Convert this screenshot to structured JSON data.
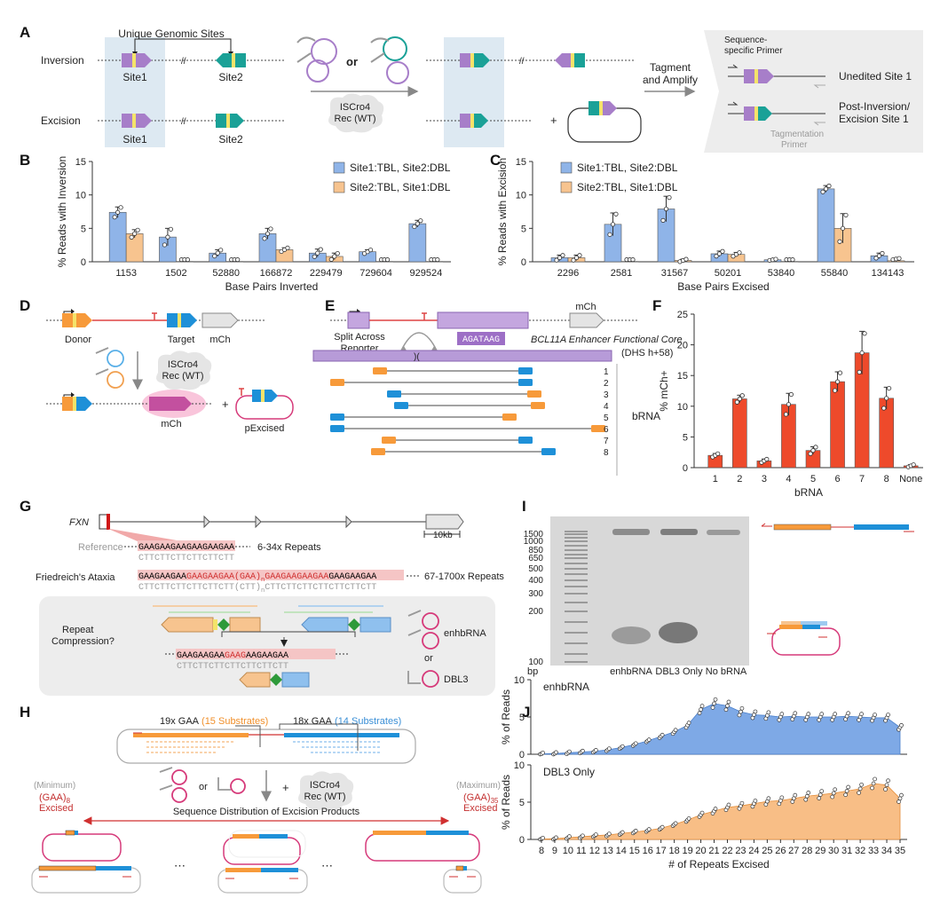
{
  "colors": {
    "blue": "#8fb4e8",
    "orange": "#f7c48f",
    "red": "#ee4a2b",
    "purple": "#a77ec9",
    "teal": "#1aa197",
    "pink": "#d63a7a",
    "gray_panel": "#ededed"
  },
  "panelA": {
    "letter": "A",
    "inversion": "Inversion",
    "excision": "Excision",
    "unique_sites": "Unique Genomic Sites",
    "site1": "Site1",
    "site2": "Site2",
    "or": "or",
    "enzyme": "ISCro4",
    "enzyme2": "Rec (WT)",
    "tagment": "Tagment",
    "amplify": "and Amplify",
    "seq_primer_1": "Sequence-",
    "seq_primer_2": "specific Primer",
    "unedited": "Unedited Site 1",
    "post_inv_1": "Post-Inversion/",
    "post_inv_2": "Excision Site 1",
    "tag_primer_1": "Tagmentation",
    "tag_primer_2": "Primer",
    "plus": "+"
  },
  "panelB": {
    "letter": "B",
    "ylabel": "% Reads with Inversion",
    "xlabel": "Base Pairs Inverted",
    "legend": [
      "Site1:TBL, Site2:DBL",
      "Site2:TBL, Site1:DBL"
    ]
  },
  "panelC": {
    "letter": "C",
    "ylabel": "% Reads with Excision",
    "xlabel": "Base Pairs Excised",
    "legend": [
      "Site1:TBL, Site2:DBL",
      "Site2:TBL, Site1:DBL"
    ]
  },
  "panelD": {
    "letter": "D",
    "donor": "Donor",
    "target": "Target",
    "mch": "mCh",
    "enzyme": "ISCro4",
    "enzyme2": "Rec (WT)",
    "plus": "+",
    "mch2": "mCh",
    "pexcised": "pExcised"
  },
  "panelE": {
    "letter": "E",
    "mch": "mCh",
    "split": "Split Across",
    "reporter": "Reporter",
    "motif": "AGATAAG",
    "core": "BCL11A Enhancer Functional Core",
    "dhs": "(DHS h+58)",
    "brna": "bRNA",
    "rows": [
      "1",
      "2",
      "3",
      "4",
      "5",
      "6",
      "7",
      "8"
    ]
  },
  "panelF": {
    "letter": "F",
    "ylabel": "% mCh+",
    "xlabel": "bRNA"
  },
  "panelG": {
    "letter": "G",
    "gene": "FXN",
    "scale": "10kb",
    "reference": "Reference",
    "ref_seq": "GAAGAAGAAGAAGAAGAA",
    "ref_comp": "CTTCTTCTTCTTCTTCTT",
    "ref_repeats": "6-34x Repeats",
    "fa": "Friedreich's Ataxia",
    "fa_seq_a": "GAAGAAGAA",
    "fa_seq_b": "GAAGAAGAA(GAA)",
    "fa_sub": "n",
    "fa_seq_c": "GAAGAAGAAGAA",
    "fa_seq_d": "GAAGAAGAA",
    "fa_comp": "CTTCTTCTTCTTCTTCTT(CTT)",
    "fa_comp2": "CTTCTTCTTCTTCTTCTTCTT",
    "fa_repeats": "67-1700x Repeats",
    "question_1": "Repeat",
    "question_2": "Compression?",
    "enh": "enhbRNA",
    "or": "or",
    "dbl3": "DBL3",
    "cmp_a": "GAAGAAGAA",
    "cmp_b": "GAAG",
    "cmp_c": "AAGAAGAA",
    "cmp_comp": "CTTCTTCTTCTTCTTCTTCTT"
  },
  "panelH": {
    "letter": "H",
    "gaa19": "19x GAA",
    "sub15": "(15 Substrates)",
    "gaa18": "18x GAA",
    "sub14": "(14 Substrates)",
    "or": "or",
    "plus": "+",
    "enzyme": "ISCro4",
    "enzyme2": "Rec (WT)",
    "minimum": "(Minimum)",
    "maximum": "(Maximum)",
    "gaa_min": "(GAA)",
    "gaa_min_sub": "8",
    "gaa_max": "(GAA)",
    "gaa_max_sub": "35",
    "excised": "Excised",
    "dist": "Sequence Distribution of Excision Products",
    "dots": "⋯"
  },
  "panelI": {
    "letter": "I",
    "ladder": [
      "1500",
      "1000",
      "850",
      "650",
      "500",
      "400",
      "300",
      "200",
      "100"
    ],
    "bp": "bp",
    "lanes": [
      "enhbRNA",
      "DBL3 Only",
      "No bRNA"
    ]
  },
  "panelJ": {
    "letter": "J",
    "top_title": "enhbRNA",
    "bottom_title": "DBL3 Only",
    "ylabel": "% of Reads",
    "xlabel": "# of Repeats Excised"
  },
  "chart_data": [
    {
      "type": "bar",
      "id": "B",
      "categories": [
        "1153",
        "1502",
        "52880",
        "166872",
        "229479",
        "729604",
        "929524"
      ],
      "series": [
        {
          "name": "Site1:TBL, Site2:DBL",
          "values": [
            7.4,
            3.7,
            1.3,
            4.2,
            1.3,
            1.5,
            5.7
          ],
          "errors": [
            0.8,
            1.3,
            0.5,
            0.8,
            0.6,
            0.3,
            0.5
          ]
        },
        {
          "name": "Site2:TBL, Site1:DBL",
          "values": [
            4.2,
            0.05,
            0.05,
            1.8,
            0.8,
            0.05,
            0.05
          ],
          "errors": [
            0.6,
            0,
            0,
            0.3,
            0.5,
            0,
            0
          ]
        }
      ],
      "ylim": [
        0,
        15
      ],
      "yticks": [
        0,
        5,
        10,
        15
      ],
      "xlabel": "Base Pairs Inverted",
      "ylabel": "% Reads with Inversion"
    },
    {
      "type": "bar",
      "id": "C",
      "categories": [
        "2296",
        "2581",
        "31567",
        "50201",
        "53840",
        "55840",
        "134143"
      ],
      "series": [
        {
          "name": "Site1:TBL, Site2:DBL",
          "values": [
            0.6,
            5.6,
            7.9,
            1.2,
            0.3,
            10.9,
            0.9
          ],
          "errors": [
            0.4,
            1.7,
            1.9,
            0.4,
            0.1,
            0.5,
            0.4
          ]
        },
        {
          "name": "Site2:TBL, Site1:DBL",
          "values": [
            0.6,
            0.05,
            0.2,
            1.1,
            0.05,
            5.0,
            0.15
          ],
          "errors": [
            0.4,
            0,
            0.2,
            0.3,
            0,
            2.2,
            0.1
          ]
        }
      ],
      "ylim": [
        0,
        15
      ],
      "yticks": [
        0,
        5,
        10,
        15
      ],
      "xlabel": "Base Pairs Excised",
      "ylabel": "% Reads with Excision"
    },
    {
      "type": "bar",
      "id": "F",
      "categories": [
        "1",
        "2",
        "3",
        "4",
        "5",
        "6",
        "7",
        "8",
        "None"
      ],
      "values": [
        2.0,
        11.2,
        1.1,
        10.3,
        2.8,
        14.0,
        18.7,
        11.3,
        0.3
      ],
      "errors": [
        0.3,
        0.6,
        0.3,
        1.8,
        0.6,
        1.6,
        3.5,
        1.8,
        0.2
      ],
      "ylim": [
        0,
        25
      ],
      "yticks": [
        0,
        5,
        10,
        15,
        20,
        25
      ],
      "xlabel": "bRNA",
      "ylabel": "% mCh+"
    },
    {
      "type": "area",
      "id": "J-top",
      "title": "enhbRNA",
      "x": [
        8,
        9,
        10,
        11,
        12,
        13,
        14,
        15,
        16,
        17,
        18,
        19,
        20,
        21,
        22,
        23,
        24,
        25,
        26,
        27,
        28,
        29,
        30,
        31,
        32,
        33,
        34,
        35
      ],
      "values": [
        0.05,
        0.1,
        0.2,
        0.3,
        0.4,
        0.6,
        0.9,
        1.3,
        1.8,
        2.4,
        3.0,
        3.9,
        6.0,
        6.8,
        6.5,
        5.7,
        5.3,
        5.2,
        5.0,
        5.1,
        5.0,
        5.0,
        5.0,
        5.1,
        5.0,
        4.9,
        4.9,
        3.6
      ],
      "ylim": [
        0,
        10
      ],
      "yticks": [
        0,
        5,
        10
      ],
      "ylabel": "% of Reads"
    },
    {
      "type": "area",
      "id": "J-bottom",
      "title": "DBL3 Only",
      "x": [
        8,
        9,
        10,
        11,
        12,
        13,
        14,
        15,
        16,
        17,
        18,
        19,
        20,
        21,
        22,
        23,
        24,
        25,
        26,
        27,
        28,
        29,
        30,
        31,
        32,
        33,
        34,
        35
      ],
      "values": [
        0.05,
        0.1,
        0.25,
        0.35,
        0.5,
        0.6,
        0.8,
        1.0,
        1.2,
        1.5,
        2.0,
        2.6,
        3.3,
        3.8,
        4.3,
        4.5,
        4.8,
        5.1,
        5.2,
        5.5,
        5.8,
        6.0,
        6.2,
        6.5,
        6.8,
        7.5,
        7.3,
        5.5
      ],
      "ylim": [
        0,
        10
      ],
      "yticks": [
        0,
        5,
        10
      ],
      "xlabel": "# of Repeats Excised",
      "ylabel": "% of Reads"
    }
  ]
}
